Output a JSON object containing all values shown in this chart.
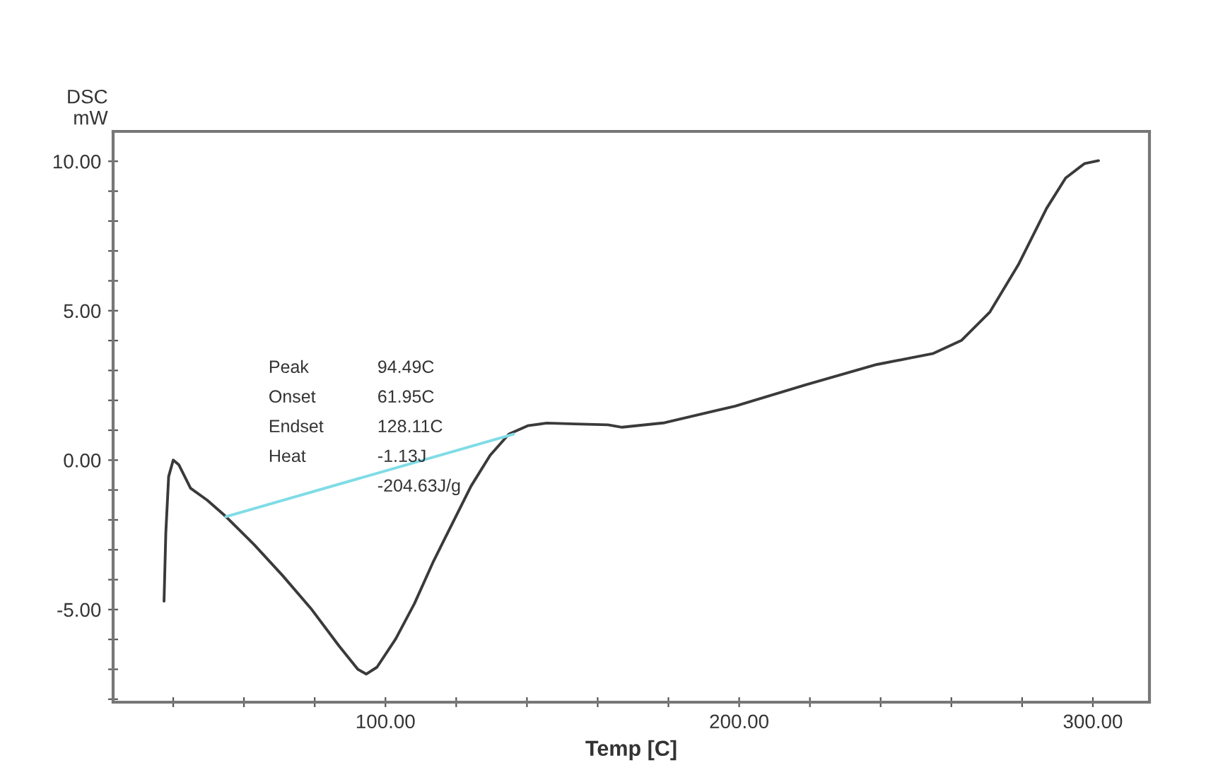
{
  "chart_data": {
    "type": "line",
    "xlabel": "Temp [C]",
    "ylabel": "DSC\nmW",
    "xlim": [
      23,
      316
    ],
    "ylim": [
      -8.1,
      11
    ],
    "xticks": [
      {
        "value": 40,
        "label": null
      },
      {
        "value": 60,
        "label": null
      },
      {
        "value": 80,
        "label": null
      },
      {
        "value": 100,
        "label": "100.00"
      },
      {
        "value": 120,
        "label": null
      },
      {
        "value": 140,
        "label": null
      },
      {
        "value": 160,
        "label": null
      },
      {
        "value": 180,
        "label": null
      },
      {
        "value": 200,
        "label": "200.00"
      },
      {
        "value": 220,
        "label": null
      },
      {
        "value": 240,
        "label": null
      },
      {
        "value": 260,
        "label": null
      },
      {
        "value": 280,
        "label": null
      },
      {
        "value": 300,
        "label": "300.00"
      }
    ],
    "yticks": [
      {
        "value": -8,
        "label": null
      },
      {
        "value": -7,
        "label": null
      },
      {
        "value": -6,
        "label": null
      },
      {
        "value": -5,
        "label": "-5.00"
      },
      {
        "value": -4,
        "label": null
      },
      {
        "value": -3,
        "label": null
      },
      {
        "value": -2,
        "label": null
      },
      {
        "value": -1,
        "label": null
      },
      {
        "value": 0,
        "label": "0.00"
      },
      {
        "value": 1,
        "label": null
      },
      {
        "value": 2,
        "label": null
      },
      {
        "value": 3,
        "label": null
      },
      {
        "value": 4,
        "label": null
      },
      {
        "value": 5,
        "label": "5.00"
      },
      {
        "value": 6,
        "label": null
      },
      {
        "value": 7,
        "label": null
      },
      {
        "value": 8,
        "label": null
      },
      {
        "value": 9,
        "label": null
      },
      {
        "value": 10,
        "label": "10.00"
      }
    ],
    "grid": false,
    "legend": false,
    "marker": "none",
    "line_style": "solid",
    "series": [
      {
        "color": "#3a3a3a",
        "x": [
          37.4,
          37.9,
          38.7,
          40.0,
          41.6,
          44.9,
          49.6,
          54.9,
          62.9,
          70.9,
          78.9,
          86.9,
          92.2,
          94.6,
          97.6,
          102.9,
          108.2,
          113.6,
          118.9,
          124.2,
          129.6,
          134.9,
          140.2,
          145.6,
          153.6,
          162.9,
          166.9,
          178.9,
          198.9,
          218.9,
          238.9,
          254.9,
          262.9,
          270.9,
          278.9,
          286.9,
          292.3,
          297.6,
          301.6
        ],
        "values": [
          -4.72,
          -2.44,
          -0.55,
          0.0,
          -0.16,
          -0.94,
          -1.34,
          -1.89,
          -2.83,
          -3.86,
          -4.96,
          -6.22,
          -7.0,
          -7.16,
          -6.93,
          -5.98,
          -4.8,
          -3.38,
          -2.12,
          -0.87,
          0.16,
          0.87,
          1.15,
          1.24,
          1.21,
          1.18,
          1.1,
          1.25,
          1.81,
          2.52,
          3.2,
          3.57,
          4.01,
          4.96,
          6.53,
          8.42,
          9.44,
          9.92,
          10.02
        ]
      },
      {
        "color": "#7fdce6",
        "x": [
          54.9,
          136.2
        ],
        "values": [
          -1.89,
          0.87
        ]
      }
    ],
    "annotations": [
      "Peak",
      "94.49C",
      "Onset",
      "61.95C",
      "Endset",
      "128.11C",
      "Heat",
      "-1.13J",
      "-204.63J/g"
    ]
  }
}
